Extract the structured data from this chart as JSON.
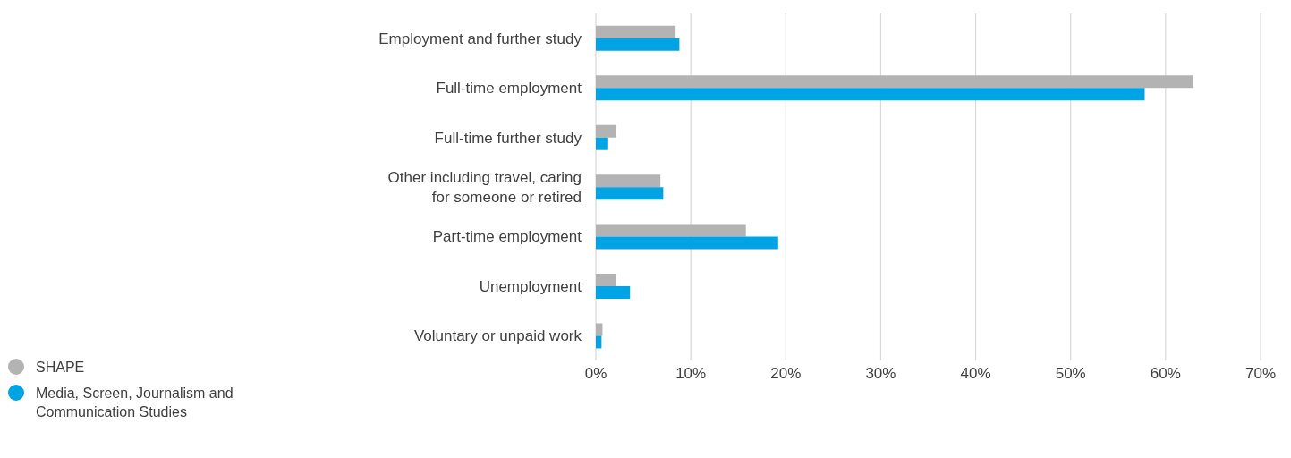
{
  "chart_data": {
    "type": "bar",
    "orientation": "horizontal",
    "categories": [
      "Employment and further study",
      "Full-time employment",
      "Full-time further study",
      "Other including travel, caring for someone or retired",
      "Part-time employment",
      "Unemployment",
      "Voluntary or unpaid work"
    ],
    "series": [
      {
        "name": "SHAPE",
        "color": "#b3b3b3",
        "values": [
          8.4,
          62.9,
          2.1,
          6.8,
          15.8,
          2.1,
          0.7
        ]
      },
      {
        "name": "Media, Screen, Journalism and Communication Studies",
        "color": "#00a3e3",
        "values": [
          8.8,
          57.8,
          1.3,
          7.1,
          19.2,
          3.6,
          0.6
        ]
      }
    ],
    "xlim": [
      0,
      70
    ],
    "xticks": [
      {
        "value": 0,
        "label": "0%"
      },
      {
        "value": 10,
        "label": "10%"
      },
      {
        "value": 20,
        "label": "20%"
      },
      {
        "value": 30,
        "label": "30%"
      },
      {
        "value": 40,
        "label": "40%"
      },
      {
        "value": 50,
        "label": "50%"
      },
      {
        "value": 60,
        "label": "60%"
      },
      {
        "value": 70,
        "label": "70%"
      }
    ],
    "grid": "x",
    "legend": "bottom left"
  }
}
